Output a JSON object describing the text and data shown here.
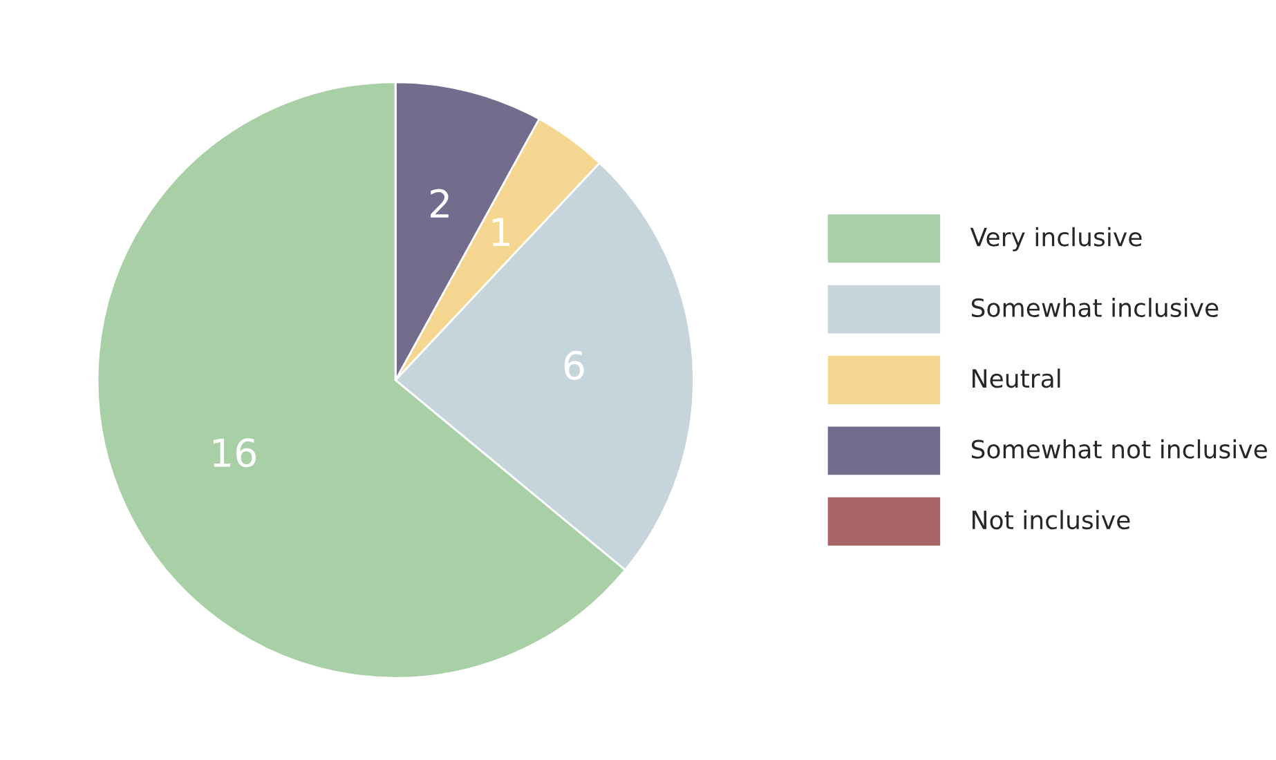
{
  "chart_data": {
    "type": "pie",
    "categories": [
      "Very inclusive",
      "Somewhat inclusive",
      "Neutral",
      "Somewhat not inclusive",
      "Not inclusive"
    ],
    "values": [
      16,
      6,
      1,
      2,
      0
    ],
    "value_labels": [
      "16",
      "6",
      "1",
      "2",
      null
    ],
    "colors": [
      "#a8cfa5",
      "#c6d4db",
      "#f5d690",
      "#736c8c",
      "#a86367"
    ],
    "legend": "right"
  }
}
